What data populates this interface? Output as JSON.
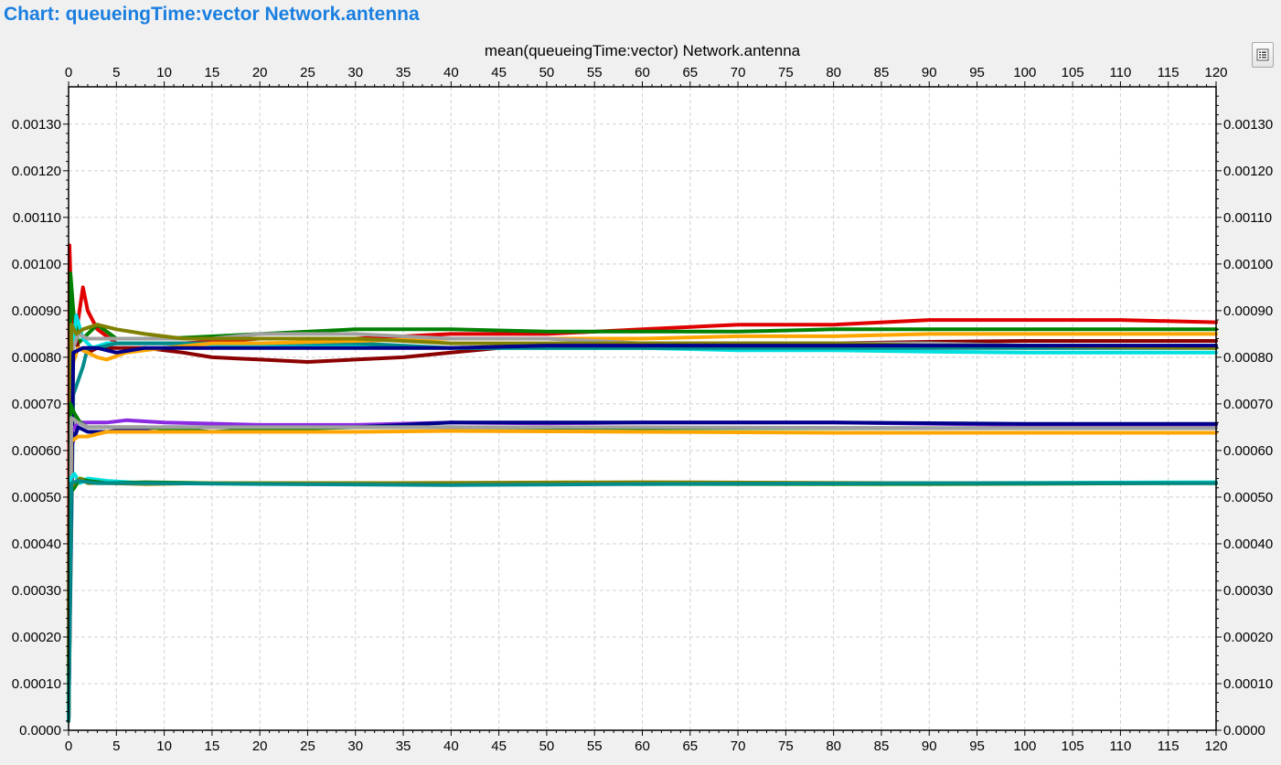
{
  "window": {
    "title": "Chart: queueingTime:vector Network.antenna"
  },
  "toolbar": {
    "legend_icon": "legend-list-icon"
  },
  "chart_data": {
    "type": "line",
    "title": "mean(queueingTime:vector) Network.antenna",
    "xlabel": "",
    "ylabel": "",
    "xlim": [
      0,
      120
    ],
    "ylim": [
      0,
      0.00138
    ],
    "x_ticks": [
      "0",
      "5",
      "10",
      "15",
      "20",
      "25",
      "30",
      "35",
      "40",
      "45",
      "50",
      "55",
      "60",
      "65",
      "70",
      "75",
      "80",
      "85",
      "90",
      "95",
      "100",
      "105",
      "110",
      "115",
      "120"
    ],
    "y_ticks": [
      "0.0000",
      "0.00010",
      "0.00020",
      "0.00030",
      "0.00040",
      "0.00050",
      "0.00060",
      "0.00070",
      "0.00080",
      "0.00090",
      "0.00100",
      "0.00110",
      "0.00120",
      "0.00130"
    ],
    "grid": true,
    "x_axis_top": true,
    "y_axis_right": true,
    "series": [
      {
        "color": "#e00000",
        "x": [
          0,
          0.1,
          0.3,
          0.6,
          1,
          1.5,
          2,
          3,
          5,
          8,
          12,
          20,
          30,
          40,
          50,
          60,
          70,
          80,
          90,
          100,
          110,
          120
        ],
        "y": [
          0.0001,
          0.00104,
          0.0009,
          0.00083,
          0.00088,
          0.00095,
          0.0009,
          0.00086,
          0.00083,
          0.00083,
          0.00083,
          0.00084,
          0.00084,
          0.00085,
          0.00085,
          0.00086,
          0.00087,
          0.00087,
          0.00088,
          0.00088,
          0.00088,
          0.000875
        ]
      },
      {
        "color": "#008000",
        "x": [
          0,
          0.2,
          0.5,
          1,
          2,
          3,
          5,
          10,
          20,
          30,
          40,
          50,
          60,
          70,
          80,
          90,
          100,
          110,
          120
        ],
        "y": [
          5e-05,
          0.00098,
          0.0009,
          0.00083,
          0.00085,
          0.00087,
          0.00084,
          0.00084,
          0.00085,
          0.00086,
          0.00086,
          0.000855,
          0.000855,
          0.000855,
          0.00086,
          0.00086,
          0.00086,
          0.00086,
          0.00086
        ]
      },
      {
        "color": "#8b0000",
        "x": [
          0,
          0.3,
          0.6,
          1,
          2,
          3,
          5,
          8,
          12,
          15,
          20,
          25,
          30,
          35,
          40,
          45,
          50,
          60,
          70,
          80,
          90,
          100,
          110,
          120
        ],
        "y": [
          3e-05,
          0.0008,
          0.00086,
          0.00082,
          0.00081,
          0.00082,
          0.00082,
          0.00082,
          0.00081,
          0.0008,
          0.000795,
          0.00079,
          0.000795,
          0.0008,
          0.00081,
          0.00082,
          0.000825,
          0.00083,
          0.00083,
          0.00083,
          0.000833,
          0.000835,
          0.000835,
          0.000835
        ]
      },
      {
        "color": "#00e0e0",
        "x": [
          0,
          0.3,
          0.8,
          1.5,
          2.5,
          4,
          6,
          10,
          20,
          30,
          40,
          50,
          60,
          70,
          80,
          90,
          100,
          110,
          120
        ],
        "y": [
          2e-05,
          0.00078,
          0.00089,
          0.00084,
          0.00082,
          0.00083,
          0.00083,
          0.00083,
          0.000825,
          0.000825,
          0.00082,
          0.00082,
          0.00082,
          0.000815,
          0.000815,
          0.000812,
          0.00081,
          0.00081,
          0.00081
        ]
      },
      {
        "color": "#008b8b",
        "x": [
          0,
          0.5,
          1,
          1.5,
          2,
          3,
          5,
          10,
          20,
          30,
          40,
          50,
          60,
          70,
          80,
          90,
          100,
          110,
          120
        ],
        "y": [
          2e-05,
          0.00072,
          0.00075,
          0.00078,
          0.00082,
          0.00082,
          0.00083,
          0.00083,
          0.00083,
          0.00083,
          0.00082,
          0.00082,
          0.00082,
          0.00082,
          0.00082,
          0.00082,
          0.00082,
          0.00082,
          0.00082
        ]
      },
      {
        "color": "#ffa500",
        "x": [
          0,
          0.5,
          1,
          2,
          3,
          4,
          6,
          10,
          15,
          20,
          30,
          40,
          50,
          60,
          70,
          80,
          90,
          100,
          110,
          120
        ],
        "y": [
          3e-05,
          0.00079,
          0.00082,
          0.00081,
          0.0008,
          0.000795,
          0.00081,
          0.00082,
          0.00083,
          0.00083,
          0.000835,
          0.00084,
          0.00084,
          0.00084,
          0.000845,
          0.000845,
          0.00085,
          0.00085,
          0.00085,
          0.00085
        ]
      },
      {
        "color": "#a0a0a0",
        "x": [
          0,
          0.5,
          1,
          2,
          4,
          8,
          15,
          20,
          25,
          30,
          40,
          50,
          60,
          70,
          80,
          90,
          100,
          110,
          120
        ],
        "y": [
          3e-05,
          0.00082,
          0.00085,
          0.00084,
          0.00084,
          0.00084,
          0.00084,
          0.00085,
          0.00085,
          0.00085,
          0.00084,
          0.00084,
          0.00083,
          0.00083,
          0.00083,
          0.00083,
          0.000825,
          0.000825,
          0.000825
        ]
      },
      {
        "color": "#808000",
        "x": [
          0,
          0.3,
          0.8,
          1.5,
          3,
          5,
          8,
          12,
          20,
          30,
          40,
          50,
          60,
          70,
          80,
          90,
          100,
          110,
          120
        ],
        "y": [
          3e-05,
          0.00087,
          0.00085,
          0.00086,
          0.00087,
          0.00086,
          0.00085,
          0.00084,
          0.00084,
          0.00084,
          0.00083,
          0.00083,
          0.00083,
          0.00083,
          0.00083,
          0.000825,
          0.000825,
          0.000822,
          0.00082
        ]
      },
      {
        "color": "#00008b",
        "x": [
          0,
          0.5,
          1.5,
          3,
          5,
          8,
          12,
          20,
          30,
          40,
          50,
          60,
          80,
          100,
          120
        ],
        "y": [
          2e-05,
          0.00081,
          0.00082,
          0.00082,
          0.00081,
          0.00082,
          0.00082,
          0.00082,
          0.00082,
          0.00082,
          0.000825,
          0.000825,
          0.000825,
          0.000825,
          0.000825
        ]
      },
      {
        "color": "#8a2be2",
        "x": [
          0,
          0.3,
          1,
          2,
          4,
          6,
          10,
          20,
          30,
          40,
          50,
          60,
          80,
          100,
          120
        ],
        "y": [
          2e-05,
          0.00064,
          0.00066,
          0.00066,
          0.00066,
          0.000665,
          0.00066,
          0.000655,
          0.000655,
          0.00066,
          0.000658,
          0.00066,
          0.00066,
          0.000655,
          0.000655
        ]
      },
      {
        "color": "#00008b",
        "x": [
          0,
          0.3,
          1,
          2,
          4,
          6,
          10,
          20,
          30,
          40,
          50,
          60,
          80,
          100,
          120
        ],
        "y": [
          2e-05,
          0.00061,
          0.00065,
          0.00064,
          0.00064,
          0.000645,
          0.00065,
          0.00065,
          0.00065,
          0.00066,
          0.00066,
          0.00066,
          0.00066,
          0.000657,
          0.000657
        ]
      },
      {
        "color": "#008000",
        "x": [
          0,
          0.2,
          0.6,
          1.2,
          2,
          4,
          8,
          15,
          20,
          30,
          40,
          60,
          80,
          100,
          120
        ],
        "y": [
          2e-05,
          0.0007,
          0.00068,
          0.00066,
          0.00065,
          0.00065,
          0.00065,
          0.00064,
          0.000645,
          0.00065,
          0.00065,
          0.000648,
          0.000648,
          0.000648,
          0.000648
        ]
      },
      {
        "color": "#ffa500",
        "x": [
          0,
          0.3,
          1,
          2,
          4,
          8,
          15,
          20,
          30,
          40,
          60,
          80,
          100,
          120
        ],
        "y": [
          2e-05,
          0.00062,
          0.00063,
          0.00063,
          0.00064,
          0.00064,
          0.00064,
          0.00064,
          0.00064,
          0.000642,
          0.00064,
          0.000638,
          0.000638,
          0.000638
        ]
      },
      {
        "color": "#a0a0a0",
        "x": [
          0,
          0.3,
          1,
          2,
          4,
          8,
          15,
          30,
          60,
          90,
          120
        ],
        "y": [
          2e-05,
          0.00067,
          0.00066,
          0.00065,
          0.00065,
          0.00065,
          0.00065,
          0.00065,
          0.00065,
          0.000648,
          0.000648
        ]
      },
      {
        "color": "#00e0e0",
        "x": [
          0,
          0.2,
          0.6,
          1.2,
          2,
          4,
          8,
          15,
          30,
          60,
          90,
          120
        ],
        "y": [
          2e-05,
          0.00054,
          0.00055,
          0.00053,
          0.00054,
          0.000535,
          0.00053,
          0.00053,
          0.00053,
          0.00053,
          0.00053,
          0.000532
        ]
      },
      {
        "color": "#008000",
        "x": [
          0,
          0.2,
          0.6,
          1.2,
          2,
          4,
          8,
          15,
          30,
          60,
          90,
          120
        ],
        "y": [
          2e-05,
          0.00051,
          0.00052,
          0.00054,
          0.000535,
          0.00053,
          0.000532,
          0.00053,
          0.00053,
          0.000528,
          0.000528,
          0.00053
        ]
      },
      {
        "color": "#808000",
        "x": [
          0,
          0.2,
          0.6,
          1.2,
          2,
          4,
          8,
          15,
          30,
          60,
          90,
          120
        ],
        "y": [
          2e-05,
          0.00052,
          0.00053,
          0.00054,
          0.00053,
          0.00053,
          0.000528,
          0.00053,
          0.00053,
          0.000532,
          0.00053,
          0.00053
        ]
      },
      {
        "color": "#008b8b",
        "x": [
          0,
          0.3,
          1,
          3,
          8,
          20,
          40,
          60,
          90,
          120
        ],
        "y": [
          2e-05,
          0.00053,
          0.000535,
          0.00053,
          0.00053,
          0.000528,
          0.000526,
          0.000528,
          0.00053,
          0.00053
        ]
      }
    ]
  }
}
